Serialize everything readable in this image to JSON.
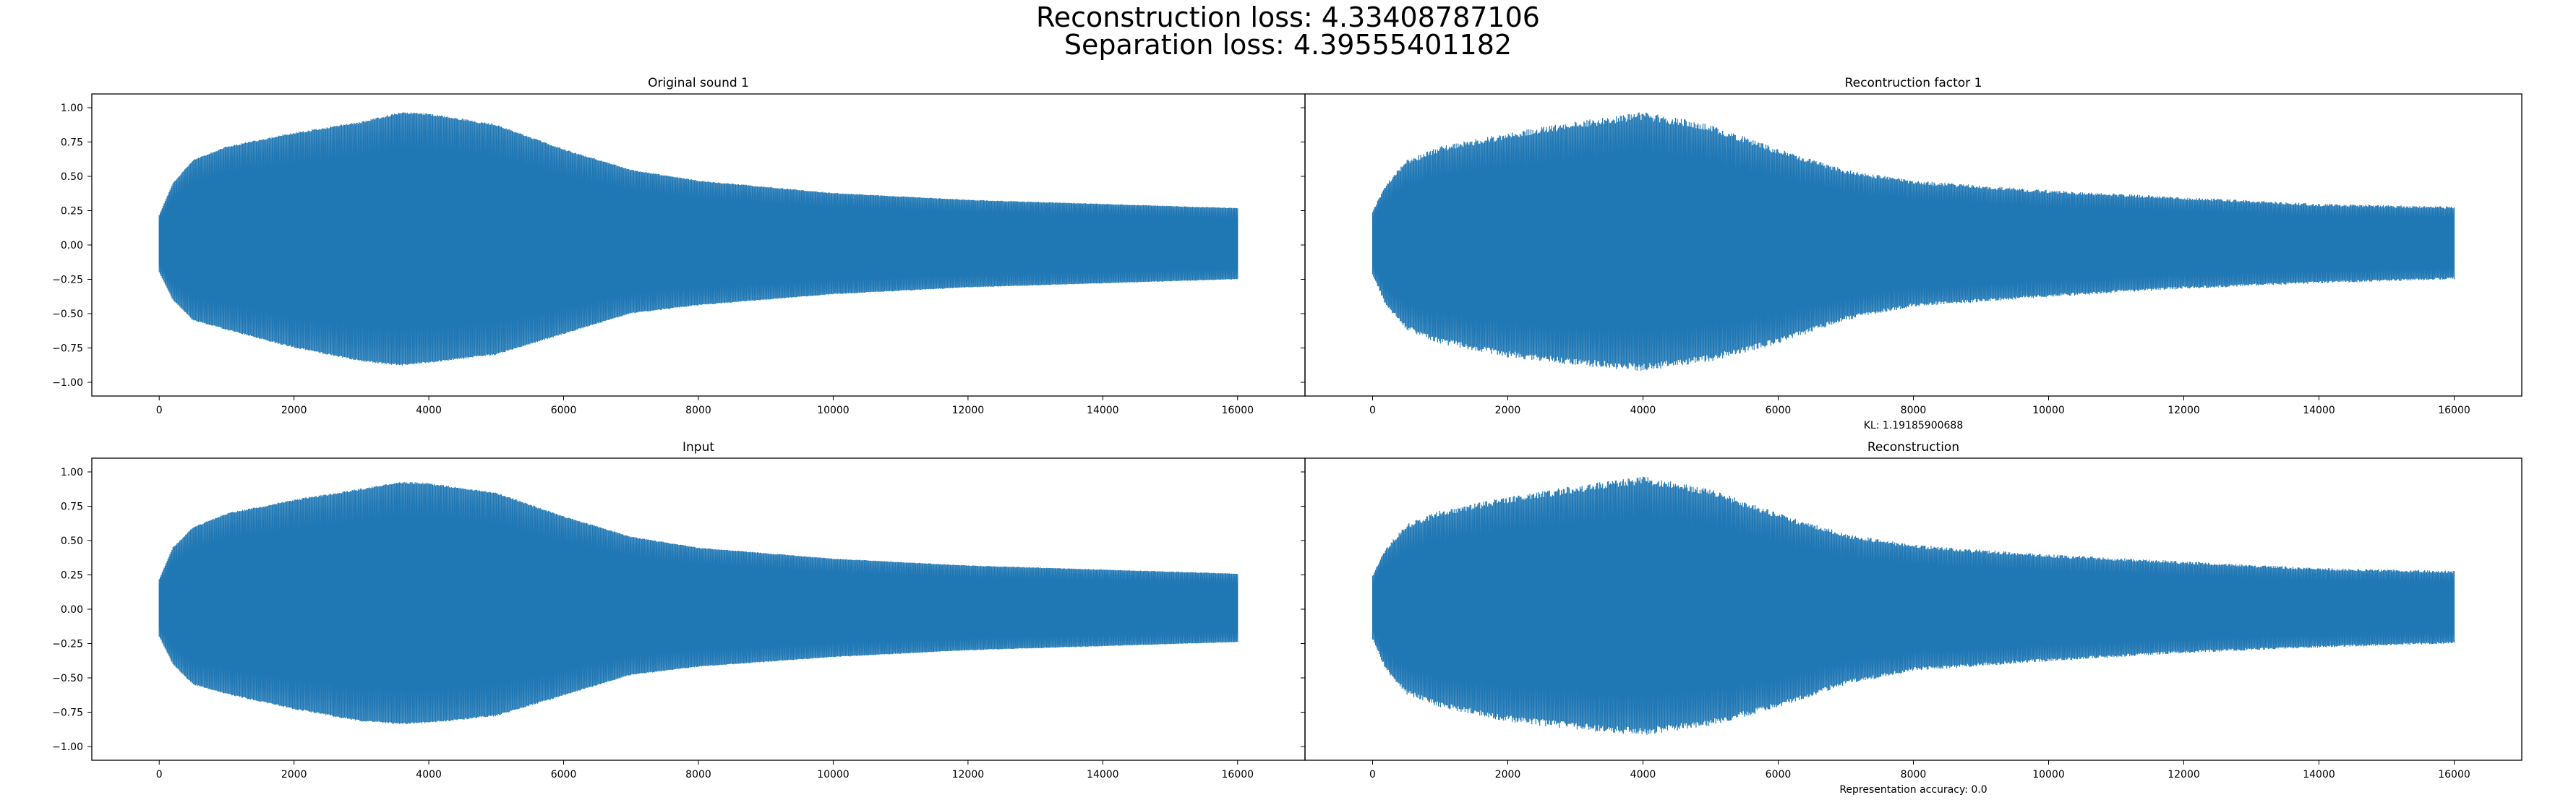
{
  "figure": {
    "suptitle_line1": "Reconstruction loss: 4.33408787106",
    "suptitle_line2": "Separation loss: 4.39555401182"
  },
  "colors": {
    "series": "#1f77b4",
    "axes": "#000000",
    "background": "#ffffff"
  },
  "chart_data": [
    {
      "type": "line",
      "title": "Original sound 1",
      "xlabel": "",
      "ylabel": "",
      "xlim": [
        -1000,
        17000
      ],
      "ylim": [
        -1.1,
        1.1
      ],
      "xticks": [
        0,
        2000,
        4000,
        6000,
        8000,
        10000,
        12000,
        14000,
        16000
      ],
      "yticks": [
        -1.0,
        -0.75,
        -0.5,
        -0.25,
        0.0,
        0.25,
        0.5,
        0.75,
        1.0
      ],
      "show_y_ticklabels": true,
      "grid": false,
      "series": [
        {
          "name": "",
          "envelope_x": [
            0,
            200,
            500,
            1000,
            2000,
            3000,
            3600,
            4000,
            5000,
            6000,
            7000,
            8000,
            10000,
            12000,
            14000,
            16000
          ],
          "envelope_upper": [
            0.22,
            0.45,
            0.62,
            0.72,
            0.82,
            0.9,
            0.97,
            0.96,
            0.88,
            0.7,
            0.55,
            0.47,
            0.38,
            0.33,
            0.3,
            0.27
          ],
          "envelope_lower": [
            -0.2,
            -0.4,
            -0.55,
            -0.62,
            -0.75,
            -0.85,
            -0.88,
            -0.86,
            -0.8,
            -0.65,
            -0.5,
            -0.44,
            -0.36,
            -0.31,
            -0.28,
            -0.25
          ],
          "noise": 0.015
        }
      ]
    },
    {
      "type": "line",
      "title": "Recontruction factor 1",
      "xlabel": "KL: 1.19185900688",
      "ylabel": "",
      "xlim": [
        -1000,
        17000
      ],
      "ylim": [
        -1.1,
        1.1
      ],
      "xticks": [
        0,
        2000,
        4000,
        6000,
        8000,
        10000,
        12000,
        14000,
        16000
      ],
      "yticks": [
        -1.0,
        -0.75,
        -0.5,
        -0.25,
        0.0,
        0.25,
        0.5,
        0.75,
        1.0
      ],
      "show_y_ticklabels": false,
      "grid": false,
      "series": [
        {
          "name": "",
          "envelope_x": [
            0,
            200,
            500,
            1000,
            2000,
            3000,
            4000,
            5000,
            6000,
            7000,
            8000,
            10000,
            12000,
            14000,
            16000
          ],
          "envelope_upper": [
            0.25,
            0.45,
            0.62,
            0.72,
            0.82,
            0.9,
            0.97,
            0.88,
            0.7,
            0.55,
            0.47,
            0.4,
            0.35,
            0.3,
            0.28
          ],
          "envelope_lower": [
            -0.22,
            -0.45,
            -0.62,
            -0.72,
            -0.82,
            -0.88,
            -0.92,
            -0.85,
            -0.72,
            -0.55,
            -0.45,
            -0.38,
            -0.32,
            -0.28,
            -0.25
          ],
          "noise": 0.06
        }
      ]
    },
    {
      "type": "line",
      "title": "Input",
      "xlabel": "",
      "ylabel": "",
      "xlim": [
        -1000,
        17000
      ],
      "ylim": [
        -1.1,
        1.1
      ],
      "xticks": [
        0,
        2000,
        4000,
        6000,
        8000,
        10000,
        12000,
        14000,
        16000
      ],
      "yticks": [
        -1.0,
        -0.75,
        -0.5,
        -0.25,
        0.0,
        0.25,
        0.5,
        0.75,
        1.0
      ],
      "show_y_ticklabels": true,
      "grid": false,
      "series": [
        {
          "name": "",
          "envelope_x": [
            0,
            200,
            500,
            1000,
            2000,
            3000,
            3600,
            4000,
            5000,
            6000,
            7000,
            8000,
            10000,
            12000,
            14000,
            16000
          ],
          "envelope_upper": [
            0.22,
            0.45,
            0.6,
            0.7,
            0.8,
            0.88,
            0.93,
            0.92,
            0.85,
            0.68,
            0.53,
            0.45,
            0.37,
            0.32,
            0.29,
            0.26
          ],
          "envelope_lower": [
            -0.2,
            -0.4,
            -0.55,
            -0.62,
            -0.73,
            -0.82,
            -0.84,
            -0.83,
            -0.78,
            -0.63,
            -0.48,
            -0.42,
            -0.35,
            -0.3,
            -0.27,
            -0.24
          ],
          "noise": 0.015
        }
      ]
    },
    {
      "type": "line",
      "title": "Reconstruction",
      "xlabel": "Representation accuracy: 0.0",
      "ylabel": "",
      "xlim": [
        -1000,
        17000
      ],
      "ylim": [
        -1.1,
        1.1
      ],
      "xticks": [
        0,
        2000,
        4000,
        6000,
        8000,
        10000,
        12000,
        14000,
        16000
      ],
      "yticks": [
        -1.0,
        -0.75,
        -0.5,
        -0.25,
        0.0,
        0.25,
        0.5,
        0.75,
        1.0
      ],
      "show_y_ticklabels": false,
      "grid": false,
      "series": [
        {
          "name": "",
          "envelope_x": [
            0,
            200,
            500,
            1000,
            2000,
            3000,
            4000,
            5000,
            6000,
            7000,
            8000,
            10000,
            12000,
            14000,
            16000
          ],
          "envelope_upper": [
            0.25,
            0.45,
            0.62,
            0.72,
            0.82,
            0.9,
            0.97,
            0.88,
            0.7,
            0.55,
            0.47,
            0.4,
            0.35,
            0.3,
            0.28
          ],
          "envelope_lower": [
            -0.22,
            -0.45,
            -0.62,
            -0.72,
            -0.82,
            -0.88,
            -0.92,
            -0.85,
            -0.72,
            -0.55,
            -0.45,
            -0.38,
            -0.32,
            -0.28,
            -0.25
          ],
          "noise": 0.06
        }
      ]
    }
  ]
}
